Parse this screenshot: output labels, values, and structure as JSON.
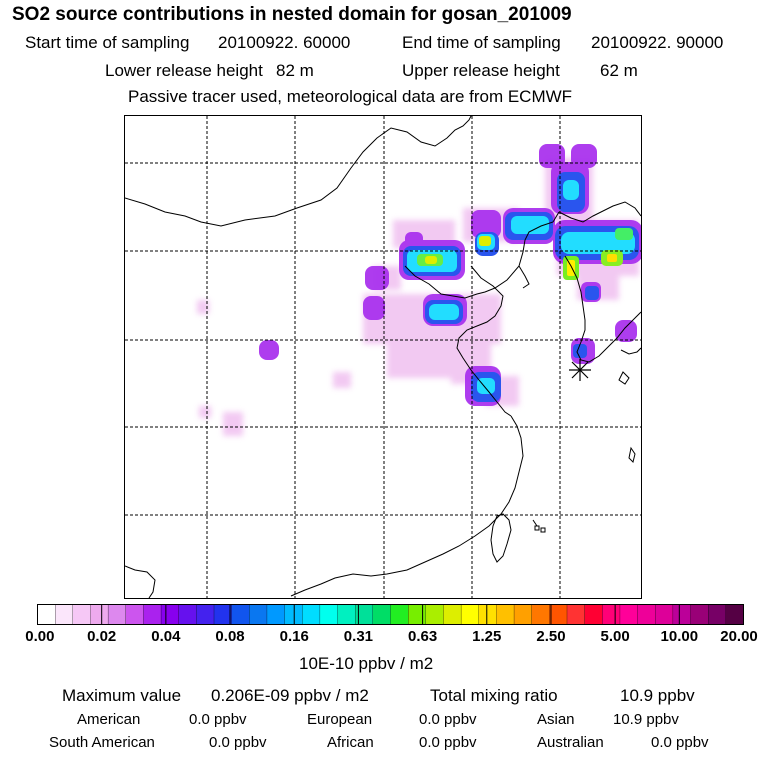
{
  "title": "SO2 source contributions in nested domain for gosan_201009",
  "start_label": "Start time of sampling",
  "start_value": "20100922. 60000",
  "end_label": "End time of sampling",
  "end_value": "20100922. 90000",
  "lower_label": "Lower release height",
  "lower_value": "82 m",
  "upper_label": "Upper release height",
  "upper_value": "62 m",
  "note": "Passive tracer used, meteorological data are from ECMWF",
  "colorbar": {
    "ticks": [
      "0.00",
      "0.02",
      "0.04",
      "0.08",
      "0.16",
      "0.31",
      "0.63",
      "1.25",
      "2.50",
      "5.00",
      "10.00",
      "20.00"
    ],
    "unit": "10E-10 ppbv / m2",
    "colors": [
      "#ffffff",
      "#fbe6fb",
      "#f6c8f6",
      "#eeaaee",
      "#dd88ee",
      "#cc55ee",
      "#aa22ee",
      "#8800ee",
      "#6611ee",
      "#4422ee",
      "#2233ee",
      "#1155ee",
      "#0a77f0",
      "#0099ff",
      "#00bbff",
      "#00ddff",
      "#00ffee",
      "#00f0c0",
      "#00e099",
      "#00dd66",
      "#22ee22",
      "#77ee00",
      "#aaee00",
      "#ddee00",
      "#ffff00",
      "#ffe000",
      "#ffc000",
      "#ffa000",
      "#ff7700",
      "#ff5500",
      "#ff3333",
      "#ff0033",
      "#ff0077",
      "#ff0099",
      "#ee0099",
      "#dd0099",
      "#bb0099",
      "#990077",
      "#770066",
      "#550044"
    ]
  },
  "stats": {
    "max_label": "Maximum value",
    "max_value": "0.206E-09 ppbv / m2",
    "total_label": "Total mixing ratio",
    "total_value": "10.9 ppbv"
  },
  "regions": [
    {
      "name": "American",
      "value": "0.0 ppbv"
    },
    {
      "name": "European",
      "value": "0.0 ppbv"
    },
    {
      "name": "Asian",
      "value": "10.9 ppbv"
    },
    {
      "name": "South American",
      "value": "0.0 ppbv"
    },
    {
      "name": "African",
      "value": "0.0 ppbv"
    },
    {
      "name": "Australian",
      "value": "0.0 ppbv"
    }
  ]
}
